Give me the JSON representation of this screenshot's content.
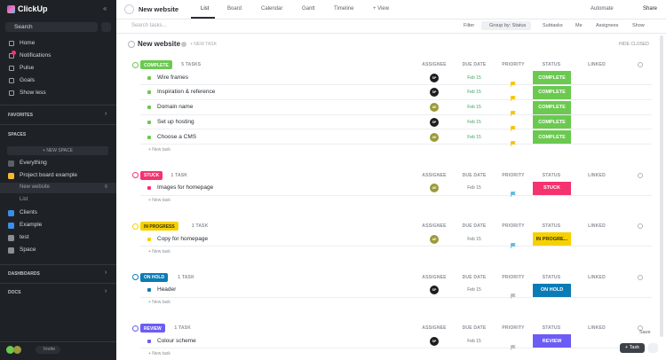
{
  "sidebar": {
    "logo": "ClickUp",
    "search": "Search",
    "nav": [
      "Home",
      "Notifications",
      "Pulse",
      "Goals",
      "Show less"
    ],
    "favorites": "FAVORITES",
    "spaces": "SPACES",
    "new_space": "+ NEW SPACE",
    "space_items": [
      {
        "label": "Everything",
        "color": "#5b5f66"
      },
      {
        "label": "Project board example",
        "color": "#f5b82e"
      },
      {
        "label": "New website",
        "count": "6",
        "sub": true
      },
      {
        "label": "List",
        "sub": true
      },
      {
        "label": "Clients",
        "color": "#3b8ee8"
      },
      {
        "label": "Example",
        "color": "#3b8ee8"
      },
      {
        "label": "test",
        "color": "#8a8f96"
      },
      {
        "label": "Space",
        "color": "#8a8f96"
      }
    ],
    "dashboards": "DASHBOARDS",
    "docs": "DOCS",
    "invite": "Invite"
  },
  "topbar": {
    "title": "New website",
    "tabs": [
      "List",
      "Board",
      "Calendar",
      "Gantt",
      "Timeline",
      "+ View"
    ],
    "automate": "Automate",
    "share": "Share"
  },
  "toolbar": {
    "search": "Search tasks...",
    "filter": "Filter",
    "group_by": "Group by: Status",
    "subtasks": "Subtasks",
    "me": "Me",
    "assignees": "Assignees",
    "show": "Show"
  },
  "list": {
    "title": "New website",
    "new_task": "+ NEW TASK",
    "hide_closed": "HIDE CLOSED",
    "columns": [
      "ASSIGNEE",
      "DUE DATE",
      "PRIORITY",
      "STATUS",
      "LINKED"
    ],
    "add_task": "+ New task",
    "groups": [
      {
        "label": "COMPLETE",
        "count": "5 TASKS",
        "color": "#6bc950",
        "tasks": [
          {
            "name": "Wire frames",
            "assignee": "SP",
            "due": "Feb 15",
            "due_color": "#3aa35c",
            "flag": "#f5c400",
            "status": "COMPLETE"
          },
          {
            "name": "Inspiration & reference",
            "assignee": "SP",
            "due": "Feb 15",
            "due_color": "#3aa35c",
            "flag": "#f5c400",
            "status": "COMPLETE"
          },
          {
            "name": "Domain name",
            "assignee": "AE",
            "due": "Feb 15",
            "due_color": "#3aa35c",
            "flag": "#f5c400",
            "status": "COMPLETE"
          },
          {
            "name": "Set up hosting",
            "assignee": "SP",
            "due": "Feb 15",
            "due_color": "#3aa35c",
            "flag": "#f5c400",
            "status": "COMPLETE"
          },
          {
            "name": "Choose a CMS",
            "assignee": "AE",
            "due": "Feb 15",
            "due_color": "#3aa35c",
            "flag": "#f5c400",
            "status": "COMPLETE"
          }
        ]
      },
      {
        "label": "STUCK",
        "count": "1 TASK",
        "color": "#f5336f",
        "tasks": [
          {
            "name": "Images for homepage",
            "assignee": "AE",
            "due": "Feb 15",
            "due_color": "#6b6f76",
            "flag": "#5fb7e0",
            "status": "STUCK"
          }
        ]
      },
      {
        "label": "IN PROGRESS",
        "count": "1 TASK",
        "color": "#f6d100",
        "text_color": "#3a3000",
        "tasks": [
          {
            "name": "Copy for homepage",
            "assignee": "AE",
            "due": "Feb 15",
            "due_color": "#6b6f76",
            "flag": "#5fb7e0",
            "status": "IN PROGRE..."
          }
        ]
      },
      {
        "label": "ON HOLD",
        "count": "1 TASK",
        "color": "#0b7bb5",
        "tasks": [
          {
            "name": "Header",
            "assignee": "SP",
            "due": "Feb 15",
            "due_color": "#6b6f76",
            "flag": "#b9bdc3",
            "status": "ON HOLD"
          }
        ]
      },
      {
        "label": "REVIEW",
        "count": "1 TASK",
        "color": "#6c5cf5",
        "tasks": [
          {
            "name": "Colour scheme",
            "assignee": "SP",
            "due": "Feb 15",
            "due_color": "#6b6f76",
            "flag": "#b9bdc3",
            "status": "REVIEW"
          }
        ]
      }
    ],
    "save": "Save",
    "task_button": "+ Task"
  }
}
